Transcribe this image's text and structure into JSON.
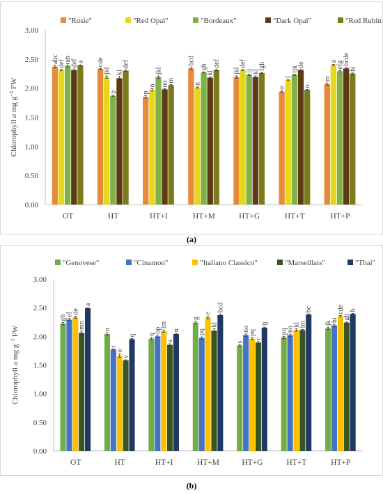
{
  "panels": [
    {
      "caption": "(a)",
      "chart_data": {
        "type": "bar",
        "ylabel_parts": [
          "Chlorophyll ",
          "a",
          " mg g",
          "−1",
          "FW"
        ],
        "ylim": [
          0,
          3
        ],
        "yticks": [
          "0.00",
          "0.50",
          "1.00",
          "1.50",
          "2.00",
          "2.50",
          "3.00"
        ],
        "ytick_values": [
          0,
          0.5,
          1,
          1.5,
          2,
          2.5,
          3
        ],
        "grid": false,
        "legend_position": "top",
        "categories": [
          "OT",
          "HT",
          "HT+I",
          "HT+M",
          "HT+G",
          "HT+T",
          "HT+P"
        ],
        "series": [
          {
            "name": "\"Rosie\"",
            "color": "#E58B3A",
            "values": [
              2.37,
              2.33,
              1.85,
              2.34,
              2.19,
              1.94,
              2.07
            ],
            "errors": [
              0.02,
              0.01,
              0.02,
              0.02,
              0.02,
              0.01,
              0.02
            ],
            "labels": [
              "abc",
              "cde",
              "p",
              "bcd",
              "jkl",
              "o",
              "m"
            ]
          },
          {
            "name": "\"Red Opal\"",
            "color": "#E8D61A",
            "values": [
              2.31,
              2.19,
              1.97,
              2.01,
              2.31,
              2.14,
              2.4
            ],
            "errors": [
              0.01,
              0.02,
              0.02,
              0.01,
              0.01,
              0.01,
              0.01
            ],
            "labels": [
              "def",
              "jkl",
              "n",
              "n",
              "def",
              "l",
              "a"
            ]
          },
          {
            "name": "\"Bordeaux\"",
            "color": "#7FB04A",
            "values": [
              2.39,
              1.87,
              2.19,
              2.27,
              2.23,
              2.23,
              2.29
            ],
            "errors": [
              0.03,
              0.01,
              0.02,
              0.01,
              0.01,
              0.01,
              0.01
            ],
            "labels": [
              "ab",
              "p",
              "jkl",
              "gh",
              "ij",
              "ijk",
              "efg"
            ]
          },
          {
            "name": "\"Dark Opal\"",
            "color": "#5E3A14",
            "values": [
              2.31,
              2.17,
              1.98,
              2.18,
              2.19,
              2.31,
              2.34
            ],
            "errors": [
              0.02,
              0.03,
              0.01,
              0.01,
              0.02,
              0.01,
              0.02
            ],
            "labels": [
              "def",
              "kl",
              "no",
              "kl",
              "kl",
              "de",
              "bcde"
            ]
          },
          {
            "name": "\"Red Rubin\"",
            "color": "#7B7A1C",
            "values": [
              2.39,
              2.3,
              2.05,
              2.31,
              2.26,
              1.97,
              2.25
            ],
            "errors": [
              0.01,
              0.01,
              0.01,
              0.01,
              0.01,
              0.01,
              0.01
            ],
            "labels": [
              "a",
              "def",
              "m",
              "def",
              "fgh",
              "o",
              "hi"
            ]
          }
        ]
      }
    },
    {
      "caption": "(b)",
      "chart_data": {
        "type": "bar",
        "ylabel_parts": [
          "Chlorophyll ",
          "a",
          " mg g",
          "−1",
          "FW"
        ],
        "ylim": [
          0,
          3
        ],
        "yticks": [
          "0.00",
          "0.50",
          "1.00",
          "1.50",
          "2.00",
          "2.50",
          "3.00"
        ],
        "ytick_values": [
          0,
          0.5,
          1,
          1.5,
          2,
          2.5,
          3
        ],
        "grid": false,
        "legend_position": "top",
        "categories": [
          "OT",
          "HT",
          "HT+I",
          "HT+M",
          "HT+G",
          "HT+T",
          "HT+P"
        ],
        "series": [
          {
            "name": "\"Genovese\"",
            "color": "#70AD47",
            "values": [
              2.22,
              2.04,
              1.96,
              2.24,
              1.84,
              1.98,
              2.14
            ],
            "errors": [
              0.02,
              0.02,
              0.02,
              0.02,
              0.01,
              0.02,
              0.02
            ],
            "labels": [
              "gh",
              "n",
              "q",
              "g",
              "s",
              "pq",
              "jk"
            ]
          },
          {
            "name": "\"Cinamon\"",
            "color": "#4472C4",
            "values": [
              2.29,
              1.77,
              2.0,
              1.97,
              2.02,
              2.02,
              2.19
            ],
            "errors": [
              0.02,
              0.01,
              0.02,
              0.02,
              0.02,
              0.02,
              0.02
            ],
            "labels": [
              "ef",
              "t",
              "op",
              "pq",
              "no",
              "no",
              "hi"
            ]
          },
          {
            "name": "\"Italiano Classico\"",
            "color": "#FFC000",
            "values": [
              2.33,
              1.66,
              2.09,
              2.33,
              1.96,
              2.11,
              2.35
            ],
            "errors": [
              0.02,
              0.03,
              0.02,
              0.02,
              0.02,
              0.02,
              0.01
            ],
            "labels": [
              "de",
              "u",
              "lm",
              "e",
              "pq",
              "kl",
              "cde"
            ]
          },
          {
            "name": "\"Marseillais\"",
            "color": "#375623",
            "values": [
              2.06,
              1.58,
              1.85,
              2.1,
              1.89,
              2.11,
              2.24
            ],
            "errors": [
              0.03,
              0.01,
              0.02,
              0.03,
              0.02,
              0.01,
              0.01
            ],
            "labels": [
              "mn",
              "v",
              "s",
              "kl",
              "r",
              "lm",
              "gh"
            ]
          },
          {
            "name": "\"Thai\"",
            "color": "#203864",
            "values": [
              2.49,
              1.95,
              2.04,
              2.37,
              2.15,
              2.38,
              2.39
            ],
            "errors": [
              0.01,
              0.01,
              0.01,
              0.02,
              0.01,
              0.01,
              0.01
            ],
            "labels": [
              "a",
              "q",
              "n",
              "bcd",
              "ij",
              "bc",
              "b"
            ]
          }
        ]
      }
    }
  ]
}
